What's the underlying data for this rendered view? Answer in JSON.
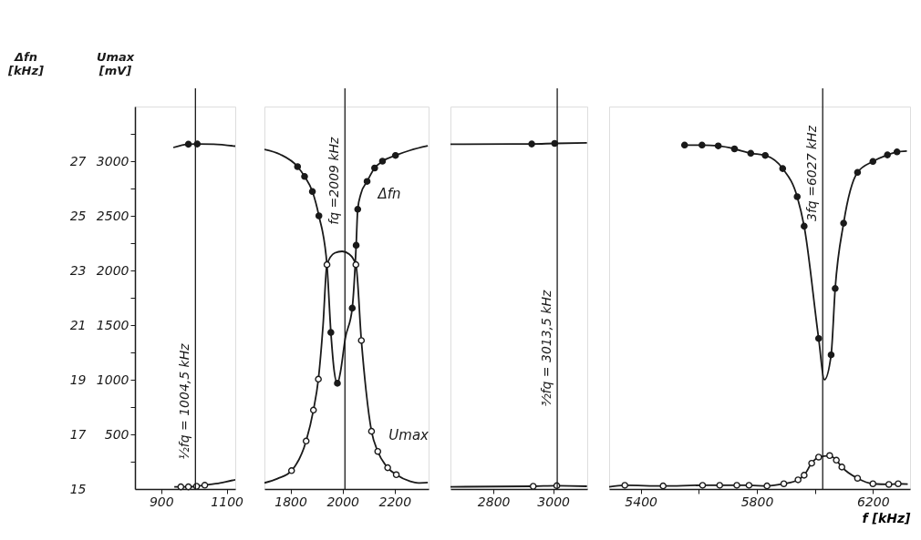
{
  "chart_data": [
    {
      "type": "line",
      "xlim": [
        820,
        1126
      ],
      "xticks": [
        900,
        1100
      ],
      "ylim": [
        15,
        29
      ],
      "yticks": [
        15,
        17,
        19,
        21,
        23,
        25,
        27
      ],
      "y2lim": [
        0,
        3500
      ],
      "y2ticks": [
        {
          "value": 250,
          "label": null
        },
        500,
        {
          "value": 750,
          "label": null
        },
        1000,
        {
          "value": 1250,
          "label": null
        },
        1500,
        {
          "value": 1750,
          "label": null
        },
        2000,
        {
          "value": 2250,
          "label": null
        },
        2500,
        {
          "value": 2750,
          "label": null
        },
        3000,
        {
          "value": 3250,
          "label": null
        }
      ],
      "ylabel": "Δfn [kHz]",
      "y2label": "Umax [mV]",
      "grid": false,
      "ref_lines": [
        {
          "axis": "x",
          "value": 1004.5,
          "label": "½fq = 1004,5 kHz",
          "color": "#1a1a1a"
        }
      ],
      "series": [
        {
          "color": "#1a1a1a",
          "x": [
            937,
            983,
            1010,
            1060,
            1126
          ],
          "values": [
            27.5,
            27.62,
            27.63,
            27.62,
            27.55
          ]
        },
        {
          "type": "scatter",
          "marker": "circle",
          "color": "#1a1a1a",
          "x": [
            983,
            1010
          ],
          "values": [
            27.62,
            27.63
          ]
        },
        {
          "axis": "y2",
          "color": "#1a1a1a",
          "x": [
            940,
            960,
            983,
            1008,
            1033,
            1080,
            1126
          ],
          "values": [
            20,
            20,
            20,
            25,
            35,
            55,
            85
          ]
        },
        {
          "type": "scatter",
          "marker": "circle",
          "axis": "y2",
          "color": "#1a1a1a",
          "x": [
            960,
            983,
            1008,
            1033
          ],
          "values": [
            20,
            20,
            25,
            35
          ]
        }
      ]
    },
    {
      "type": "line",
      "xlim": [
        1700,
        2330
      ],
      "xticks": [
        1800,
        2000,
        2200
      ],
      "ylim": [
        15,
        29
      ],
      "y2lim": [
        0,
        3500
      ],
      "tick_labels": "x",
      "grid": false,
      "ref_lines": [
        {
          "axis": "x",
          "value": 2009,
          "label": "fq =2009 kHz",
          "color": "#1a1a1a"
        }
      ],
      "series": [
        {
          "name": "Δfn",
          "color": "#1a1a1a",
          "x": [
            1700,
            1760,
            1827,
            1854,
            1884,
            1909,
            1940,
            1955,
            1968,
            1980,
            1992,
            2010,
            2037,
            2052,
            2058,
            2070,
            2094,
            2123,
            2153,
            2203,
            2260,
            2327
          ],
          "values": [
            27.43,
            27.25,
            26.8,
            26.44,
            25.89,
            25.0,
            23.2,
            20.73,
            19.3,
            18.85,
            19.3,
            20.5,
            21.62,
            23.92,
            25.24,
            25.8,
            26.26,
            26.75,
            27.0,
            27.21,
            27.4,
            27.56
          ]
        },
        {
          "type": "scatter",
          "marker": "circle",
          "color": "#1a1a1a",
          "x": [
            1827,
            1854,
            1884,
            1909,
            1955,
            1980,
            2037,
            2052,
            2058,
            2094,
            2123,
            2153,
            2203
          ],
          "values": [
            26.8,
            26.44,
            25.89,
            25.0,
            20.73,
            18.87,
            21.62,
            23.92,
            25.24,
            26.26,
            26.75,
            27.0,
            27.21
          ]
        },
        {
          "name": "Umax",
          "axis": "y2",
          "color": "#1a1a1a",
          "x": [
            1700,
            1750,
            1804,
            1860,
            1888,
            1907,
            1925,
            1940,
            1970,
            1998,
            2025,
            2051,
            2072,
            2090,
            2111,
            2135,
            2173,
            2206,
            2260,
            2290,
            2327
          ],
          "values": [
            56,
            95,
            168,
            439,
            722,
            1005,
            1500,
            2053,
            2160,
            2175,
            2150,
            2053,
            1359,
            900,
            528,
            344,
            195,
            131,
            70,
            56,
            60
          ]
        },
        {
          "type": "scatter",
          "marker": "circle",
          "axis": "y2",
          "color": "#1a1a1a",
          "x": [
            1804,
            1860,
            1888,
            1907,
            1940,
            2051,
            2072,
            2111,
            2135,
            2173,
            2206
          ],
          "values": [
            168,
            439,
            722,
            1005,
            2053,
            2053,
            1359,
            528,
            344,
            195,
            131
          ]
        }
      ]
    },
    {
      "type": "line",
      "xlim": [
        2656,
        3114
      ],
      "xticks": [
        2800,
        3000
      ],
      "ylim": [
        15,
        29
      ],
      "y2lim": [
        0,
        3500
      ],
      "tick_labels": "x",
      "grid": false,
      "ref_lines": [
        {
          "axis": "x",
          "value": 3013.5,
          "label": "³⁄₂fq = 3013,5 kHz",
          "color": "#1a1a1a"
        }
      ],
      "series": [
        {
          "color": "#1a1a1a",
          "x": [
            2656,
            2928,
            3005,
            3113
          ],
          "values": [
            27.62,
            27.63,
            27.65,
            27.67
          ]
        },
        {
          "type": "scatter",
          "marker": "circle",
          "color": "#1a1a1a",
          "x": [
            2928,
            3005
          ],
          "values": [
            27.63,
            27.65
          ]
        },
        {
          "axis": "y2",
          "color": "#1a1a1a",
          "x": [
            2656,
            2933,
            3012,
            3113
          ],
          "values": [
            20,
            25,
            30,
            25
          ]
        },
        {
          "type": "scatter",
          "marker": "circle",
          "axis": "y2",
          "color": "#1a1a1a",
          "x": [
            2933,
            3012
          ],
          "values": [
            25,
            30
          ]
        }
      ]
    },
    {
      "type": "line",
      "xlim": [
        5291,
        6328
      ],
      "xticks": [
        5400,
        {
          "value": 5600,
          "label": null
        },
        5800,
        {
          "value": 6000,
          "label": null
        },
        6200
      ],
      "xlabel": "f [kHz]",
      "ylim": [
        15,
        29
      ],
      "y2lim": [
        0,
        3500
      ],
      "tick_labels": "x",
      "grid": false,
      "ref_lines": [
        {
          "axis": "x",
          "value": 6027,
          "label": "3fq =6027 kHz",
          "color": "#1a1a1a"
        }
      ],
      "series": [
        {
          "color": "#1a1a1a",
          "x": [
            5551,
            5611,
            5667,
            5723,
            5779,
            5829,
            5889,
            5939,
            5963,
            6013,
            6033,
            6056,
            6070,
            6099,
            6147,
            6200,
            6250,
            6283,
            6317
          ],
          "values": [
            27.59,
            27.59,
            27.56,
            27.45,
            27.29,
            27.21,
            26.73,
            25.7,
            24.62,
            20.51,
            19.0,
            19.91,
            22.34,
            24.73,
            26.59,
            26.99,
            27.23,
            27.34,
            27.37
          ]
        },
        {
          "type": "scatter",
          "marker": "circle",
          "color": "#1a1a1a",
          "x": [
            5551,
            5611,
            5667,
            5723,
            5779,
            5829,
            5889,
            5939,
            5963,
            6013,
            6056,
            6070,
            6099,
            6147,
            6200,
            6250,
            6283
          ],
          "values": [
            27.59,
            27.59,
            27.56,
            27.45,
            27.29,
            27.21,
            26.73,
            25.7,
            24.62,
            20.51,
            19.91,
            22.34,
            24.73,
            26.59,
            26.99,
            27.23,
            27.34
          ]
        },
        {
          "axis": "y2",
          "color": "#1a1a1a",
          "x": [
            5291,
            5345,
            5477,
            5613,
            5672,
            5731,
            5773,
            5835,
            5893,
            5942,
            5963,
            5989,
            6013,
            6051,
            6074,
            6093,
            6147,
            6200,
            6255,
            6287,
            6320
          ],
          "values": [
            20,
            34,
            28,
            34,
            34,
            34,
            34,
            28,
            48,
            84,
            126,
            236,
            292,
            306,
            264,
            201,
            98,
            48,
            42,
            48,
            45
          ]
        },
        {
          "type": "scatter",
          "marker": "circle",
          "axis": "y2",
          "color": "#1a1a1a",
          "x": [
            5345,
            5477,
            5613,
            5672,
            5731,
            5773,
            5835,
            5893,
            5942,
            5963,
            5989,
            6013,
            6051,
            6074,
            6093,
            6147,
            6200,
            6255,
            6287
          ],
          "values": [
            34,
            28,
            34,
            34,
            34,
            34,
            28,
            48,
            84,
            126,
            236,
            292,
            306,
            264,
            201,
            98,
            48,
            42,
            48
          ]
        }
      ]
    }
  ]
}
